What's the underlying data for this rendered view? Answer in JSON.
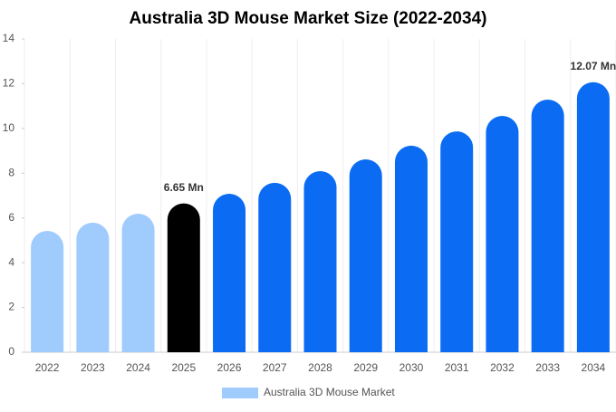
{
  "chart_data": {
    "type": "bar",
    "title": "Australia 3D Mouse Market Size (2022-2034)",
    "categories": [
      "2022",
      "2023",
      "2024",
      "2025",
      "2026",
      "2027",
      "2028",
      "2029",
      "2030",
      "2031",
      "2032",
      "2033",
      "2034"
    ],
    "series": [
      {
        "name": "Australia 3D Mouse Market",
        "color": "#a0cbfd",
        "values": [
          5.42,
          5.79,
          6.19,
          6.65,
          7.08,
          7.57,
          8.09,
          8.62,
          9.23,
          9.87,
          10.56,
          11.29,
          12.07
        ],
        "value_labels": [
          null,
          null,
          null,
          "6.65 Mn",
          null,
          null,
          null,
          null,
          null,
          null,
          null,
          null,
          "12.07 Mn"
        ],
        "bar_colors": [
          "#a0cbfd",
          "#a0cbfd",
          "#a0cbfd",
          "#000000",
          "#0b6cf3",
          "#0b6cf3",
          "#0b6cf3",
          "#0b6cf3",
          "#0b6cf3",
          "#0b6cf3",
          "#0b6cf3",
          "#0b6cf3",
          "#0b6cf3"
        ]
      }
    ],
    "ylim": [
      0,
      14
    ],
    "yticks": [
      0,
      2,
      4,
      6,
      8,
      10,
      12,
      14
    ],
    "legend": "bottom"
  }
}
